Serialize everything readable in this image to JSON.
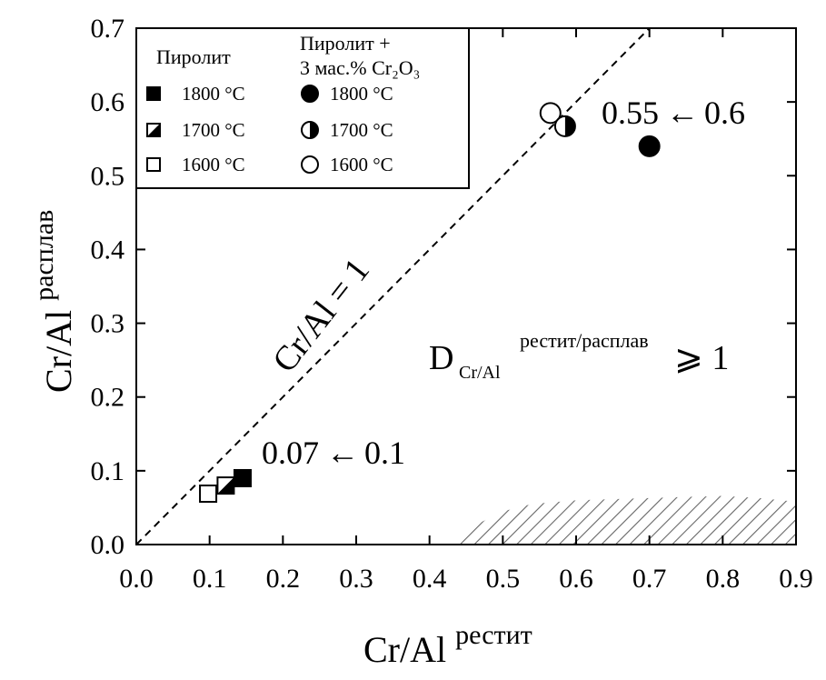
{
  "chart_data": {
    "type": "scatter",
    "xlabel": {
      "main": "Cr/Al",
      "sup": "рестит"
    },
    "ylabel": {
      "main": "Cr/Al",
      "sup": "расплав"
    },
    "xlim": [
      0.0,
      0.9
    ],
    "ylim": [
      0.0,
      0.7
    ],
    "xticks": [
      "0.0",
      "0.1",
      "0.2",
      "0.3",
      "0.4",
      "0.5",
      "0.6",
      "0.7",
      "0.8",
      "0.9"
    ],
    "yticks": [
      "0.0",
      "0.1",
      "0.2",
      "0.3",
      "0.4",
      "0.5",
      "0.6",
      "0.7"
    ],
    "grid": false,
    "legend": {
      "placement": "top-left",
      "group1_title": "Пиролит",
      "group2_title_line1": "Пиролит +",
      "group2_title_line2": "3 мас.% Cr₂O₃",
      "labels": [
        "1800 °C",
        "1700 °C",
        "1600 °C"
      ]
    },
    "series": [
      {
        "name": "Пиролит",
        "marker": "square",
        "points": [
          {
            "x": 0.145,
            "y": 0.09,
            "fill": "full",
            "label": "1800 °C"
          },
          {
            "x": 0.122,
            "y": 0.08,
            "fill": "half",
            "label": "1700 °C"
          },
          {
            "x": 0.098,
            "y": 0.069,
            "fill": "none",
            "label": "1600 °C"
          }
        ]
      },
      {
        "name": "Пиролит + 3 мас.% Cr₂O₃",
        "marker": "circle",
        "points": [
          {
            "x": 0.7,
            "y": 0.54,
            "fill": "full",
            "label": "1800 °C"
          },
          {
            "x": 0.585,
            "y": 0.567,
            "fill": "half",
            "label": "1700 °C"
          },
          {
            "x": 0.565,
            "y": 0.585,
            "fill": "none",
            "label": "1600 °C"
          }
        ]
      }
    ],
    "reference_line": {
      "label": "Cr/Al = 1",
      "from": [
        0.0,
        0.0
      ],
      "to": [
        0.7,
        0.7
      ],
      "style": "dashed"
    },
    "annotations": {
      "arrow_high": {
        "left": "0.55",
        "arrow": "←",
        "right": "0.6"
      },
      "arrow_low": {
        "left": "0.07",
        "arrow": "←",
        "right": "0.1"
      },
      "partition": {
        "main": "D",
        "sub": "Cr/Al",
        "sup": "рестит/расплав",
        "rel": "⩾ 1"
      }
    },
    "hatched_region": {
      "x": [
        0.44,
        0.47,
        0.5,
        0.54,
        0.6,
        0.7,
        0.8,
        0.85,
        0.9
      ],
      "y_top": [
        0.0,
        0.03,
        0.045,
        0.055,
        0.06,
        0.063,
        0.066,
        0.063,
        0.058
      ]
    }
  }
}
